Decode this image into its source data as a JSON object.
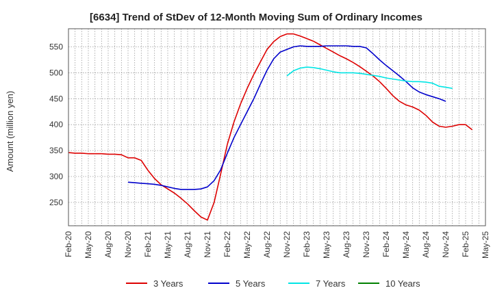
{
  "chart_data": {
    "type": "line",
    "title": "[6634]  Trend of StDev of 12-Month Moving Sum of Ordinary Incomes",
    "xlabel": "",
    "ylabel": "Amount (million yen)",
    "ylim": [
      205,
      585
    ],
    "yticks": [
      250,
      300,
      350,
      400,
      450,
      500,
      550
    ],
    "xticks": [
      "Feb-20",
      "May-20",
      "Aug-20",
      "Nov-20",
      "Feb-21",
      "May-21",
      "Aug-21",
      "Nov-21",
      "Feb-22",
      "May-22",
      "Aug-22",
      "Nov-22",
      "Feb-23",
      "May-23",
      "Aug-23",
      "Nov-23",
      "Feb-24",
      "May-24",
      "Aug-24",
      "Nov-24",
      "Feb-25",
      "May-25"
    ],
    "x_start": "Feb-20",
    "grid": true,
    "legend_position": "bottom",
    "series": [
      {
        "name": "3 Years",
        "color": "#dd0000",
        "start_index": 0,
        "values": [
          346,
          345,
          345,
          344,
          344,
          344,
          343,
          343,
          342,
          336,
          336,
          331,
          312,
          296,
          284,
          276,
          268,
          258,
          247,
          234,
          222,
          216,
          250,
          305,
          362,
          405,
          440,
          470,
          497,
          521,
          545,
          560,
          570,
          575,
          575,
          571,
          566,
          561,
          554,
          547,
          540,
          533,
          527,
          520,
          512,
          503,
          494,
          483,
          470,
          456,
          445,
          438,
          434,
          428,
          418,
          405,
          397,
          395,
          397,
          400,
          400,
          390
        ]
      },
      {
        "name": "5 Years",
        "color": "#0000cc",
        "start_index": 9,
        "values": [
          289,
          288,
          287,
          286,
          285,
          283,
          280,
          277,
          275,
          275,
          275,
          276,
          280,
          292,
          313,
          345,
          375,
          400,
          425,
          450,
          478,
          505,
          527,
          540,
          545,
          550,
          552,
          551,
          551,
          551,
          552,
          552,
          552,
          552,
          551,
          551,
          548,
          537,
          525,
          514,
          504,
          494,
          483,
          471,
          463,
          458,
          454,
          450,
          445
        ]
      },
      {
        "name": "7 Years",
        "color": "#00e5e5",
        "start_index": 33,
        "values": [
          494,
          504,
          509,
          511,
          510,
          508,
          505,
          502,
          500,
          500,
          500,
          499,
          497,
          495,
          493,
          490,
          488,
          486,
          484,
          483,
          483,
          482,
          480,
          474,
          472,
          470
        ]
      },
      {
        "name": "10 Years",
        "color": "#008000",
        "start_index": 0,
        "values": []
      }
    ]
  }
}
